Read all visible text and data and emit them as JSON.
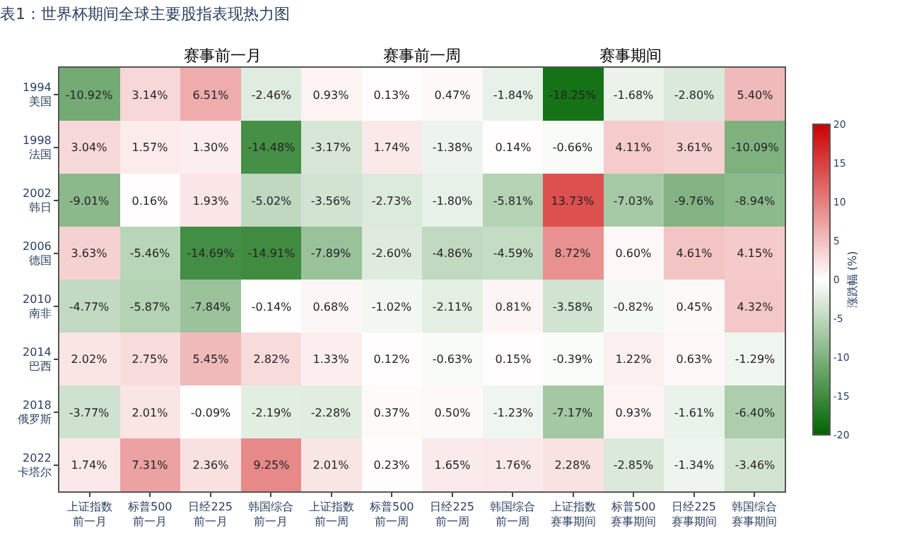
{
  "chart_data": {
    "type": "heatmap",
    "title": "表1：世界杯期间全球主要股指表现热力图",
    "clabel": "涨跌幅 (%)",
    "annotations": [
      "赛事前一月",
      "赛事前一周",
      "赛事期间"
    ],
    "categories": [
      "上证指数前一月",
      "标普500前一月",
      "日经225前一月",
      "韩国综合前一月",
      "上证指数前一周",
      "标普500前一周",
      "日经225前一周",
      "韩国综合前一周",
      "上证指数赛事期间",
      "标普500赛事期间",
      "日经225赛事期间",
      "韩国综合赛事期间"
    ],
    "y_categories": [
      "1994\n美国",
      "1998\n法国",
      "2002\n韩日",
      "2006\n德国",
      "2010\n南非",
      "2014\n巴西",
      "2018\n俄罗斯",
      "2022\n卡塔尔"
    ],
    "cells": [
      [
        -10.92,
        3.14,
        6.51,
        -2.46,
        0.93,
        0.13,
        0.47,
        -1.84,
        -18.25,
        -1.68,
        -2.8,
        5.4
      ],
      [
        3.04,
        1.57,
        1.3,
        -14.48,
        -3.17,
        1.74,
        -1.38,
        0.14,
        -0.66,
        4.11,
        3.61,
        -10.09
      ],
      [
        -9.01,
        0.16,
        1.93,
        -5.02,
        -3.56,
        -2.73,
        -1.8,
        -5.81,
        13.73,
        -7.03,
        -9.76,
        -8.94
      ],
      [
        3.63,
        -5.46,
        -14.69,
        -14.91,
        -7.89,
        -2.6,
        -4.86,
        -4.59,
        8.72,
        0.6,
        4.61,
        4.15
      ],
      [
        -4.77,
        -5.87,
        -7.84,
        -0.14,
        0.68,
        -1.02,
        -2.11,
        0.81,
        -3.58,
        -0.82,
        0.45,
        4.32
      ],
      [
        2.02,
        2.75,
        5.45,
        2.82,
        1.33,
        0.12,
        -0.63,
        0.15,
        -0.39,
        1.22,
        0.63,
        -1.29
      ],
      [
        -3.77,
        2.01,
        -0.09,
        -2.19,
        -2.28,
        0.37,
        0.5,
        -1.23,
        -7.17,
        0.93,
        -1.61,
        -6.4
      ],
      [
        1.74,
        7.31,
        2.36,
        9.25,
        2.01,
        0.23,
        1.65,
        1.76,
        2.28,
        -2.85,
        -1.34,
        -3.46
      ]
    ],
    "cell_labels": [
      [
        "-10.92%",
        "3.14%",
        "6.51%",
        "-2.46%",
        "0.93%",
        "0.13%",
        "0.47%",
        "-1.84%",
        "-18.25%",
        "-1.68%",
        "-2.80%",
        "5.40%"
      ],
      [
        "3.04%",
        "1.57%",
        "1.30%",
        "-14.48%",
        "-3.17%",
        "1.74%",
        "-1.38%",
        "0.14%",
        "-0.66%",
        "4.11%",
        "3.61%",
        "-10.09%"
      ],
      [
        "-9.01%",
        "0.16%",
        "1.93%",
        "-5.02%",
        "-3.56%",
        "-2.73%",
        "-1.80%",
        "-5.81%",
        "13.73%",
        "-7.03%",
        "-9.76%",
        "-8.94%"
      ],
      [
        "3.63%",
        "-5.46%",
        "-14.69%",
        "-14.91%",
        "-7.89%",
        "-2.60%",
        "-4.86%",
        "-4.59%",
        "8.72%",
        "0.60%",
        "4.61%",
        "4.15%"
      ],
      [
        "-4.77%",
        "-5.87%",
        "-7.84%",
        "-0.14%",
        "0.68%",
        "-1.02%",
        "-2.11%",
        "0.81%",
        "-3.58%",
        "-0.82%",
        "0.45%",
        "4.32%"
      ],
      [
        "2.02%",
        "2.75%",
        "5.45%",
        "2.82%",
        "1.33%",
        "0.12%",
        "-0.63%",
        "0.15%",
        "-0.39%",
        "1.22%",
        "0.63%",
        "-1.29%"
      ],
      [
        "-3.77%",
        "2.01%",
        "-0.09%",
        "-2.19%",
        "-2.28%",
        "0.37%",
        "0.50%",
        "-1.23%",
        "-7.17%",
        "0.93%",
        "-1.61%",
        "-6.40%"
      ],
      [
        "1.74%",
        "7.31%",
        "2.36%",
        "9.25%",
        "2.01%",
        "0.23%",
        "1.65%",
        "1.76%",
        "2.28%",
        "-2.85%",
        "-1.34%",
        "-3.46%"
      ]
    ],
    "clim": [
      -20,
      20
    ],
    "cticks": [
      -20,
      -15,
      -10,
      -5,
      0,
      5,
      10,
      15,
      20
    ]
  }
}
